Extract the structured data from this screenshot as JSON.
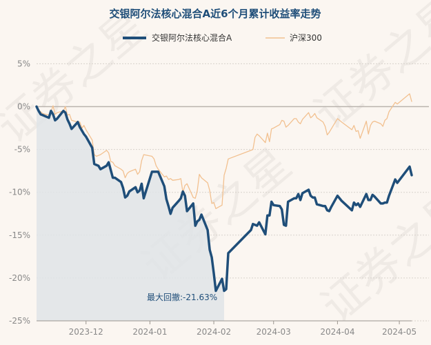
{
  "watermark": "证券之星",
  "chart_data": {
    "type": "line",
    "title": "交银阿尔法核心混合A近6个月累计收益率走势",
    "xlabel": "",
    "ylabel": "",
    "ylim": [
      -25,
      6
    ],
    "yticks": [
      5,
      0,
      -5,
      -10,
      -15,
      -20,
      -25
    ],
    "ytick_labels": [
      "5%",
      "0%",
      "-5%",
      "-10%",
      "-15%",
      "-20%",
      "-25%"
    ],
    "xlim": [
      "2023-11-07",
      "2024-05-07"
    ],
    "xticks": [
      "2023-12-01",
      "2024-01-01",
      "2024-02-01",
      "2024-03-01",
      "2024-04-01",
      "2024-05-01"
    ],
    "xtick_labels": [
      "2023-12",
      "2024-01",
      "2024-02",
      "2024-03",
      "2024-04",
      "2024-05"
    ],
    "grid": "horizontal",
    "legend_position": "top-center",
    "annotation": {
      "label": "最大回撤:",
      "value": "-21.63%"
    },
    "drawdown": {
      "start": "2023-11-07",
      "end": "2024-02-06"
    },
    "series": [
      {
        "name": "交银阿尔法核心混合A",
        "color": "#1f4e79",
        "points": [
          [
            "2023-11-07",
            0.0
          ],
          [
            "2023-11-08",
            -0.5
          ],
          [
            "2023-11-09",
            -0.9
          ],
          [
            "2023-11-10",
            -1.0
          ],
          [
            "2023-11-13",
            -1.3
          ],
          [
            "2023-11-14",
            -0.5
          ],
          [
            "2023-11-15",
            -0.9
          ],
          [
            "2023-11-16",
            -1.6
          ],
          [
            "2023-11-17",
            -1.4
          ],
          [
            "2023-11-20",
            -0.5
          ],
          [
            "2023-11-21",
            -0.7
          ],
          [
            "2023-11-22",
            -1.5
          ],
          [
            "2023-11-23",
            -2.0
          ],
          [
            "2023-11-24",
            -2.6
          ],
          [
            "2023-11-27",
            -1.8
          ],
          [
            "2023-11-28",
            -2.4
          ],
          [
            "2023-11-29",
            -2.8
          ],
          [
            "2023-11-30",
            -3.2
          ],
          [
            "2023-12-01",
            -3.5
          ],
          [
            "2023-12-04",
            -4.8
          ],
          [
            "2023-12-05",
            -6.7
          ],
          [
            "2023-12-06",
            -6.8
          ],
          [
            "2023-12-07",
            -6.9
          ],
          [
            "2023-12-08",
            -7.3
          ],
          [
            "2023-12-11",
            -6.9
          ],
          [
            "2023-12-12",
            -6.5
          ],
          [
            "2023-12-13",
            -7.4
          ],
          [
            "2023-12-14",
            -8.3
          ],
          [
            "2023-12-15",
            -8.3
          ],
          [
            "2023-12-18",
            -8.8
          ],
          [
            "2023-12-19",
            -9.5
          ],
          [
            "2023-12-20",
            -10.6
          ],
          [
            "2023-12-21",
            -10.4
          ],
          [
            "2023-12-22",
            -9.9
          ],
          [
            "2023-12-25",
            -9.4
          ],
          [
            "2023-12-26",
            -10.0
          ],
          [
            "2023-12-27",
            -9.8
          ],
          [
            "2023-12-28",
            -9.0
          ],
          [
            "2023-12-29",
            -10.7
          ],
          [
            "2024-01-02",
            -7.6
          ],
          [
            "2024-01-03",
            -7.6
          ],
          [
            "2024-01-04",
            -7.6
          ],
          [
            "2024-01-05",
            -7.6
          ],
          [
            "2024-01-08",
            -9.3
          ],
          [
            "2024-01-09",
            -10.8
          ],
          [
            "2024-01-10",
            -11.6
          ],
          [
            "2024-01-11",
            -12.5
          ],
          [
            "2024-01-12",
            -11.8
          ],
          [
            "2024-01-15",
            -11.0
          ],
          [
            "2024-01-16",
            -10.7
          ],
          [
            "2024-01-17",
            -9.9
          ],
          [
            "2024-01-18",
            -10.4
          ],
          [
            "2024-01-19",
            -12.2
          ],
          [
            "2024-01-22",
            -11.3
          ],
          [
            "2024-01-23",
            -13.9
          ],
          [
            "2024-01-24",
            -13.4
          ],
          [
            "2024-01-25",
            -13.2
          ],
          [
            "2024-01-26",
            -12.6
          ],
          [
            "2024-01-29",
            -14.4
          ],
          [
            "2024-01-30",
            -16.7
          ],
          [
            "2024-01-31",
            -17.6
          ],
          [
            "2024-02-01",
            -19.5
          ],
          [
            "2024-02-02",
            -21.5
          ],
          [
            "2024-02-05",
            -20.1
          ],
          [
            "2024-02-06",
            -21.5
          ],
          [
            "2024-02-07",
            -21.3
          ],
          [
            "2024-02-08",
            -17.1
          ],
          [
            "2024-02-19",
            -14.4
          ],
          [
            "2024-02-20",
            -13.7
          ],
          [
            "2024-02-21",
            -13.8
          ],
          [
            "2024-02-22",
            -13.9
          ],
          [
            "2024-02-23",
            -13.5
          ],
          [
            "2024-02-26",
            -14.9
          ],
          [
            "2024-02-27",
            -12.7
          ],
          [
            "2024-02-28",
            -12.7
          ],
          [
            "2024-02-29",
            -11.1
          ],
          [
            "2024-03-01",
            -11.5
          ],
          [
            "2024-03-04",
            -11.6
          ],
          [
            "2024-03-05",
            -12.0
          ],
          [
            "2024-03-06",
            -13.8
          ],
          [
            "2024-03-07",
            -13.9
          ],
          [
            "2024-03-08",
            -11.1
          ],
          [
            "2024-03-11",
            -10.7
          ],
          [
            "2024-03-12",
            -10.7
          ],
          [
            "2024-03-13",
            -10.2
          ],
          [
            "2024-03-14",
            -10.9
          ],
          [
            "2024-03-15",
            -10.1
          ],
          [
            "2024-03-18",
            -9.7
          ],
          [
            "2024-03-19",
            -10.4
          ],
          [
            "2024-03-20",
            -10.6
          ],
          [
            "2024-03-21",
            -10.6
          ],
          [
            "2024-03-22",
            -11.4
          ],
          [
            "2024-03-25",
            -11.6
          ],
          [
            "2024-03-26",
            -11.6
          ],
          [
            "2024-03-27",
            -12.1
          ],
          [
            "2024-03-28",
            -12.2
          ],
          [
            "2024-03-29",
            -11.7
          ],
          [
            "2024-04-01",
            -10.4
          ],
          [
            "2024-04-02",
            -10.7
          ],
          [
            "2024-04-03",
            -11.0
          ],
          [
            "2024-04-08",
            -12.1
          ],
          [
            "2024-04-09",
            -11.2
          ],
          [
            "2024-04-10",
            -11.5
          ],
          [
            "2024-04-11",
            -11.3
          ],
          [
            "2024-04-12",
            -11.7
          ],
          [
            "2024-04-15",
            -10.2
          ],
          [
            "2024-04-16",
            -10.9
          ],
          [
            "2024-04-17",
            -10.9
          ],
          [
            "2024-04-18",
            -10.3
          ],
          [
            "2024-04-19",
            -10.5
          ],
          [
            "2024-04-22",
            -11.3
          ],
          [
            "2024-04-23",
            -11.3
          ],
          [
            "2024-04-24",
            -11.2
          ],
          [
            "2024-04-25",
            -11.2
          ],
          [
            "2024-04-26",
            -10.4
          ],
          [
            "2024-04-29",
            -8.5
          ],
          [
            "2024-04-30",
            -8.9
          ],
          [
            "2024-05-06",
            -7.0
          ],
          [
            "2024-05-07",
            -8.0
          ]
        ]
      },
      {
        "name": "沪深300",
        "color": "#f2c08f",
        "points": [
          [
            "2023-11-07",
            0.0
          ],
          [
            "2023-11-08",
            -0.4
          ],
          [
            "2023-11-09",
            -0.6
          ],
          [
            "2023-11-10",
            -0.8
          ],
          [
            "2023-11-13",
            -1.0
          ],
          [
            "2023-11-14",
            -0.6
          ],
          [
            "2023-11-15",
            0.1
          ],
          [
            "2023-11-16",
            -0.9
          ],
          [
            "2023-11-17",
            -0.7
          ],
          [
            "2023-11-20",
            -0.5
          ],
          [
            "2023-11-21",
            0.0
          ],
          [
            "2023-11-22",
            -1.0
          ],
          [
            "2023-11-23",
            -0.9
          ],
          [
            "2023-11-24",
            -1.6
          ],
          [
            "2023-11-27",
            -1.8
          ],
          [
            "2023-11-28",
            -1.8
          ],
          [
            "2023-11-29",
            -2.5
          ],
          [
            "2023-11-30",
            -2.2
          ],
          [
            "2023-12-01",
            -2.7
          ],
          [
            "2023-12-04",
            -3.9
          ],
          [
            "2023-12-05",
            -5.6
          ],
          [
            "2023-12-06",
            -5.8
          ],
          [
            "2023-12-07",
            -5.7
          ],
          [
            "2023-12-08",
            -5.6
          ],
          [
            "2023-12-11",
            -5.1
          ],
          [
            "2023-12-12",
            -5.4
          ],
          [
            "2023-12-13",
            -6.4
          ],
          [
            "2023-12-14",
            -6.5
          ],
          [
            "2023-12-15",
            -6.9
          ],
          [
            "2023-12-18",
            -7.3
          ],
          [
            "2023-12-19",
            -7.5
          ],
          [
            "2023-12-20",
            -8.3
          ],
          [
            "2023-12-21",
            -7.8
          ],
          [
            "2023-12-22",
            -7.6
          ],
          [
            "2023-12-25",
            -7.3
          ],
          [
            "2023-12-26",
            -7.9
          ],
          [
            "2023-12-27",
            -7.6
          ],
          [
            "2023-12-28",
            -6.3
          ],
          [
            "2023-12-29",
            -5.6
          ],
          [
            "2024-01-02",
            -5.8
          ],
          [
            "2024-01-03",
            -6.1
          ],
          [
            "2024-01-04",
            -6.9
          ],
          [
            "2024-01-05",
            -7.3
          ],
          [
            "2024-01-08",
            -8.2
          ],
          [
            "2024-01-09",
            -8.1
          ],
          [
            "2024-01-10",
            -8.5
          ],
          [
            "2024-01-11",
            -8.4
          ],
          [
            "2024-01-12",
            -8.6
          ],
          [
            "2024-01-15",
            -8.5
          ],
          [
            "2024-01-16",
            -8.4
          ],
          [
            "2024-01-17",
            -10.0
          ],
          [
            "2024-01-18",
            -9.2
          ],
          [
            "2024-01-19",
            -9.0
          ],
          [
            "2024-01-22",
            -10.6
          ],
          [
            "2024-01-23",
            -10.7
          ],
          [
            "2024-01-24",
            -9.8
          ],
          [
            "2024-01-25",
            -7.9
          ],
          [
            "2024-01-26",
            -8.3
          ],
          [
            "2024-01-29",
            -8.9
          ],
          [
            "2024-01-30",
            -9.8
          ],
          [
            "2024-01-31",
            -11.3
          ],
          [
            "2024-02-01",
            -11.2
          ],
          [
            "2024-02-02",
            -11.9
          ],
          [
            "2024-02-05",
            -11.5
          ],
          [
            "2024-02-06",
            -8.0
          ],
          [
            "2024-02-07",
            -7.2
          ],
          [
            "2024-02-08",
            -6.1
          ],
          [
            "2024-02-19",
            -5.1
          ],
          [
            "2024-02-20",
            -5.0
          ],
          [
            "2024-02-21",
            -3.6
          ],
          [
            "2024-02-22",
            -3.2
          ],
          [
            "2024-02-23",
            -3.4
          ],
          [
            "2024-02-26",
            -4.2
          ],
          [
            "2024-02-27",
            -3.1
          ],
          [
            "2024-02-28",
            -4.1
          ],
          [
            "2024-02-29",
            -2.6
          ],
          [
            "2024-03-01",
            -2.5
          ],
          [
            "2024-03-04",
            -2.1
          ],
          [
            "2024-03-05",
            -1.6
          ],
          [
            "2024-03-06",
            -1.7
          ],
          [
            "2024-03-07",
            -2.4
          ],
          [
            "2024-03-08",
            -2.2
          ],
          [
            "2024-03-11",
            -1.4
          ],
          [
            "2024-03-12",
            -1.4
          ],
          [
            "2024-03-13",
            -1.8
          ],
          [
            "2024-03-14",
            -2.0
          ],
          [
            "2024-03-15",
            -1.5
          ],
          [
            "2024-03-18",
            -0.7
          ],
          [
            "2024-03-19",
            -1.3
          ],
          [
            "2024-03-20",
            -1.1
          ],
          [
            "2024-03-21",
            -0.8
          ],
          [
            "2024-03-22",
            -1.3
          ],
          [
            "2024-03-25",
            -1.8
          ],
          [
            "2024-03-26",
            -2.3
          ],
          [
            "2024-03-27",
            -3.3
          ],
          [
            "2024-03-28",
            -3.0
          ],
          [
            "2024-03-29",
            -2.6
          ],
          [
            "2024-04-01",
            -1.4
          ],
          [
            "2024-04-02",
            -1.6
          ],
          [
            "2024-04-03",
            -1.8
          ],
          [
            "2024-04-08",
            -2.7
          ],
          [
            "2024-04-09",
            -2.2
          ],
          [
            "2024-04-10",
            -2.9
          ],
          [
            "2024-04-11",
            -2.8
          ],
          [
            "2024-04-12",
            -3.7
          ],
          [
            "2024-04-15",
            -1.7
          ],
          [
            "2024-04-16",
            -3.2
          ],
          [
            "2024-04-17",
            -2.2
          ],
          [
            "2024-04-18",
            -1.8
          ],
          [
            "2024-04-19",
            -1.7
          ],
          [
            "2024-04-22",
            -2.0
          ],
          [
            "2024-04-23",
            -2.3
          ],
          [
            "2024-04-24",
            -1.6
          ],
          [
            "2024-04-25",
            -1.4
          ],
          [
            "2024-04-26",
            -0.6
          ],
          [
            "2024-04-29",
            0.5
          ],
          [
            "2024-04-30",
            0.3
          ],
          [
            "2024-05-06",
            1.5
          ],
          [
            "2024-05-07",
            0.6
          ]
        ]
      }
    ]
  }
}
